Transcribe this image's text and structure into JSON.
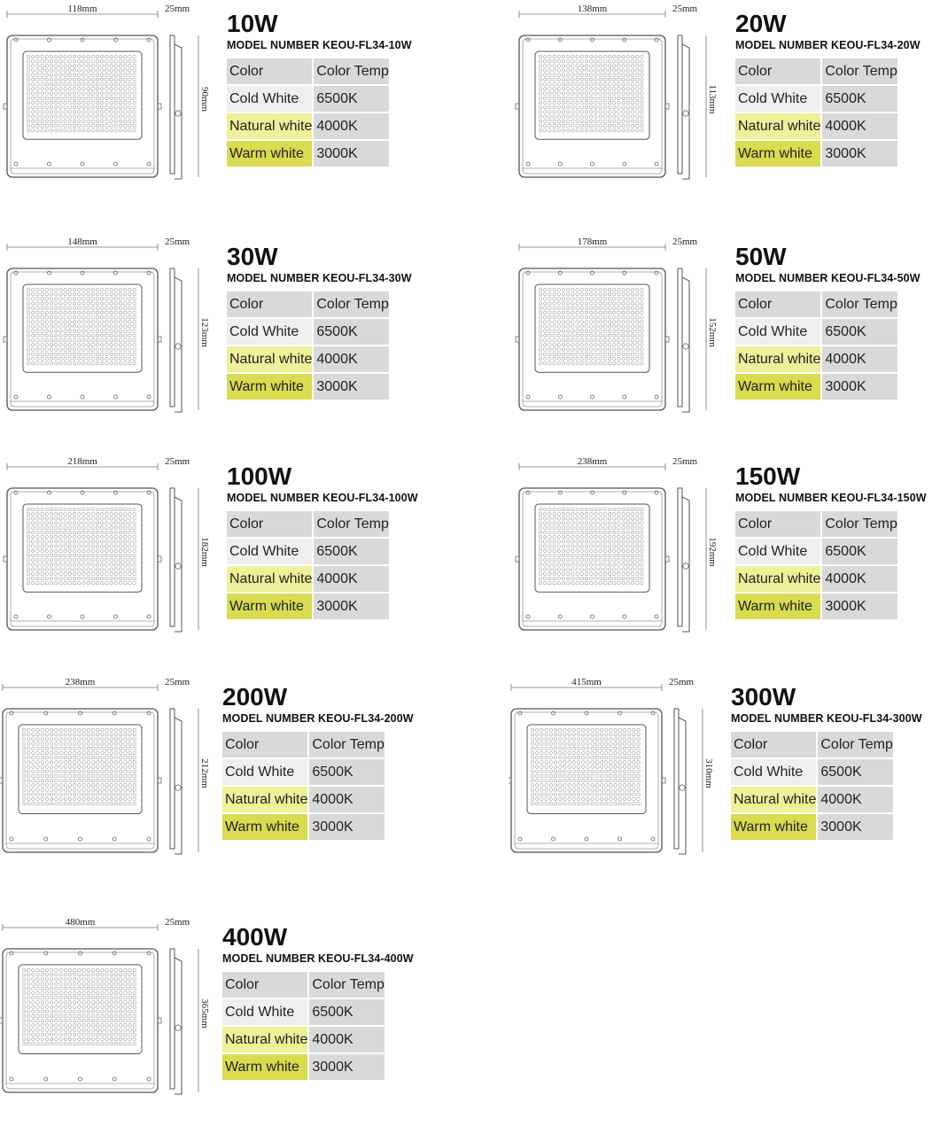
{
  "products": [
    {
      "power": "10W",
      "model": "MODEL NUMBER KEOU-FL34-10W",
      "width_label": "118mm",
      "depth_label": "25mm",
      "height_label": "90mm",
      "rows": [
        {
          "color": "Color",
          "temp": "Color Temp"
        },
        {
          "color": "Cold White",
          "temp": "6500K"
        },
        {
          "color": "Natural white",
          "temp": "4000K"
        },
        {
          "color": "Warm white",
          "temp": "3000K"
        }
      ]
    },
    {
      "power": "20W",
      "model": "MODEL NUMBER KEOU-FL34-20W",
      "width_label": "138mm",
      "depth_label": "25mm",
      "height_label": "113mm",
      "rows": [
        {
          "color": "Color",
          "temp": "Color Temp"
        },
        {
          "color": "Cold White",
          "temp": "6500K"
        },
        {
          "color": "Natural white",
          "temp": "4000K"
        },
        {
          "color": "Warm white",
          "temp": "3000K"
        }
      ]
    },
    {
      "power": "30W",
      "model": "MODEL NUMBER KEOU-FL34-30W",
      "width_label": "148mm",
      "depth_label": "25mm",
      "height_label": "123mm",
      "rows": [
        {
          "color": "Color",
          "temp": "Color Temp"
        },
        {
          "color": "Cold White",
          "temp": "6500K"
        },
        {
          "color": "Natural white",
          "temp": "4000K"
        },
        {
          "color": "Warm white",
          "temp": "3000K"
        }
      ]
    },
    {
      "power": "50W",
      "model": "MODEL NUMBER KEOU-FL34-50W",
      "width_label": "178mm",
      "depth_label": "25mm",
      "height_label": "152mm",
      "rows": [
        {
          "color": "Color",
          "temp": "Color Temp"
        },
        {
          "color": "Cold White",
          "temp": "6500K"
        },
        {
          "color": "Natural white",
          "temp": "4000K"
        },
        {
          "color": "Warm white",
          "temp": "3000K"
        }
      ]
    },
    {
      "power": "100W",
      "model": "MODEL NUMBER KEOU-FL34-100W",
      "width_label": "218mm",
      "depth_label": "25mm",
      "height_label": "182mm",
      "rows": [
        {
          "color": "Color",
          "temp": "Color Temp"
        },
        {
          "color": "Cold White",
          "temp": "6500K"
        },
        {
          "color": "Natural white",
          "temp": "4000K"
        },
        {
          "color": "Warm white",
          "temp": "3000K"
        }
      ]
    },
    {
      "power": "150W",
      "model": "MODEL NUMBER KEOU-FL34-150W",
      "width_label": "238mm",
      "depth_label": "25mm",
      "height_label": "192mm",
      "rows": [
        {
          "color": "Color",
          "temp": "Color Temp"
        },
        {
          "color": "Cold White",
          "temp": "6500K"
        },
        {
          "color": "Natural white",
          "temp": "4000K"
        },
        {
          "color": "Warm white",
          "temp": "3000K"
        }
      ]
    },
    {
      "power": "200W",
      "model": "MODEL NUMBER KEOU-FL34-200W",
      "width_label": "238mm",
      "depth_label": "25mm",
      "height_label": "212mm",
      "rows": [
        {
          "color": "Color",
          "temp": "Color Temp"
        },
        {
          "color": "Cold White",
          "temp": "6500K"
        },
        {
          "color": "Natural white",
          "temp": "4000K"
        },
        {
          "color": "Warm white",
          "temp": "3000K"
        }
      ]
    },
    {
      "power": "300W",
      "model": "MODEL NUMBER KEOU-FL34-300W",
      "width_label": "415mm",
      "depth_label": "25mm",
      "height_label": "310mm",
      "rows": [
        {
          "color": "Color",
          "temp": "Color Temp"
        },
        {
          "color": "Cold White",
          "temp": "6500K"
        },
        {
          "color": "Natural white",
          "temp": "4000K"
        },
        {
          "color": "Warm white",
          "temp": "3000K"
        }
      ]
    },
    {
      "power": "400W",
      "model": "MODEL NUMBER KEOU-FL34-400W",
      "width_label": "480mm",
      "depth_label": "25mm",
      "height_label": "365mm",
      "rows": [
        {
          "color": "Color",
          "temp": "Color Temp"
        },
        {
          "color": "Cold White",
          "temp": "6500K"
        },
        {
          "color": "Natural white",
          "temp": "4000K"
        },
        {
          "color": "Warm white",
          "temp": "3000K"
        }
      ]
    }
  ]
}
